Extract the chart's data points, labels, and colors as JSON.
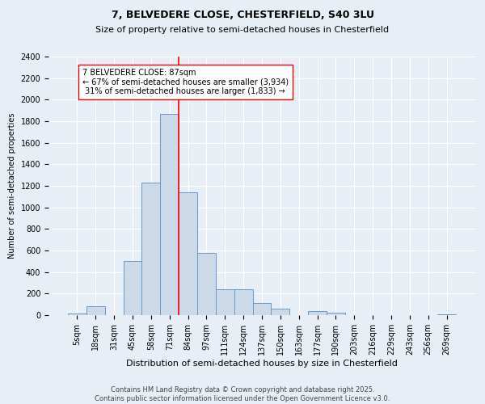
{
  "title1": "7, BELVEDERE CLOSE, CHESTERFIELD, S40 3LU",
  "title2": "Size of property relative to semi-detached houses in Chesterfield",
  "xlabel": "Distribution of semi-detached houses by size in Chesterfield",
  "ylabel": "Number of semi-detached properties",
  "footer1": "Contains HM Land Registry data © Crown copyright and database right 2025.",
  "footer2": "Contains public sector information licensed under the Open Government Licence v3.0.",
  "bin_labels": [
    "5sqm",
    "18sqm",
    "31sqm",
    "45sqm",
    "58sqm",
    "71sqm",
    "84sqm",
    "97sqm",
    "111sqm",
    "124sqm",
    "137sqm",
    "150sqm",
    "163sqm",
    "177sqm",
    "190sqm",
    "203sqm",
    "216sqm",
    "229sqm",
    "243sqm",
    "256sqm",
    "269sqm"
  ],
  "bar_values": [
    15,
    80,
    0,
    500,
    1230,
    1870,
    1140,
    580,
    240,
    240,
    110,
    60,
    0,
    40,
    25,
    0,
    0,
    0,
    0,
    0,
    10
  ],
  "bar_color": "#ccd9e8",
  "bar_edge_color": "#6699cc",
  "property_line_x": 6.0,
  "property_line_color": "red",
  "annotation_text": "7 BELVEDERE CLOSE: 87sqm\n← 67% of semi-detached houses are smaller (3,934)\n 31% of semi-detached houses are larger (1,833) →",
  "annotation_box_color": "white",
  "annotation_box_edge_color": "red",
  "ylim": [
    0,
    2400
  ],
  "yticks": [
    0,
    200,
    400,
    600,
    800,
    1000,
    1200,
    1400,
    1600,
    1800,
    2000,
    2200,
    2400
  ],
  "background_color": "#e8eef5",
  "plot_background_color": "#e8eef5",
  "grid_color": "white",
  "title1_fontsize": 9,
  "title2_fontsize": 8,
  "xlabel_fontsize": 8,
  "ylabel_fontsize": 7,
  "tick_fontsize": 7,
  "footer_fontsize": 6,
  "annotation_fontsize": 7
}
